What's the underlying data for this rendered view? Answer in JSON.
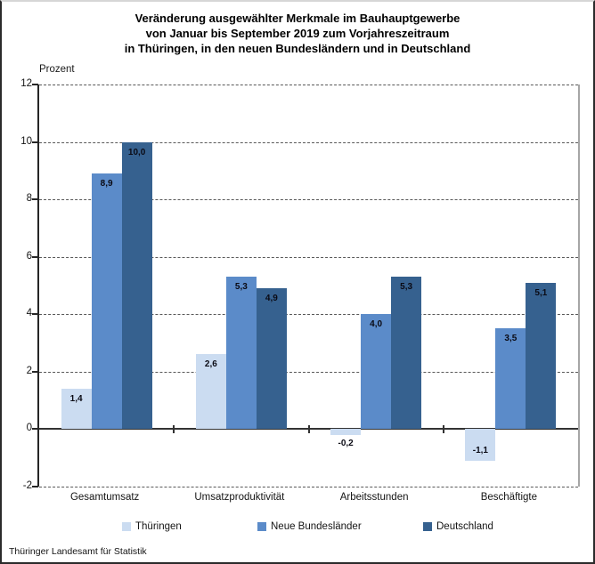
{
  "title": {
    "line1": "Veränderung ausgewählter Merkmale im Bauhauptgewerbe",
    "line2": "von Januar bis September 2019 zum Vorjahreszeitraum",
    "line3": "in Thüringen, in den neuen Bundesländern und in Deutschland"
  },
  "footer": "Thüringer Landesamt für Statistik",
  "chart_data": {
    "type": "bar",
    "title": "Veränderung ausgewählter Merkmale im Bauhauptgewerbe von Januar bis September 2019 zum Vorjahreszeitraum in Thüringen, in den neuen Bundesländern und in Deutschland",
    "ylabel": "Prozent",
    "xlabel": "",
    "categories": [
      "Gesamtumsatz",
      "Umsatzproduktivität",
      "Arbeitsstunden",
      "Beschäftigte"
    ],
    "series": [
      {
        "name": "Thüringen",
        "color": "#cbdcf1",
        "values": [
          1.4,
          2.6,
          -0.2,
          -1.1
        ]
      },
      {
        "name": "Neue Bundesländer",
        "color": "#5b8bc9",
        "values": [
          8.9,
          5.3,
          4.0,
          3.5
        ]
      },
      {
        "name": "Deutschland",
        "color": "#36618f",
        "values": [
          10.0,
          4.9,
          5.3,
          5.1
        ]
      }
    ],
    "ylim": [
      -2,
      12
    ],
    "ytick_step": 2,
    "grid": "horizontal-dashed",
    "legend_position": "bottom",
    "value_label_decimal": "comma"
  }
}
